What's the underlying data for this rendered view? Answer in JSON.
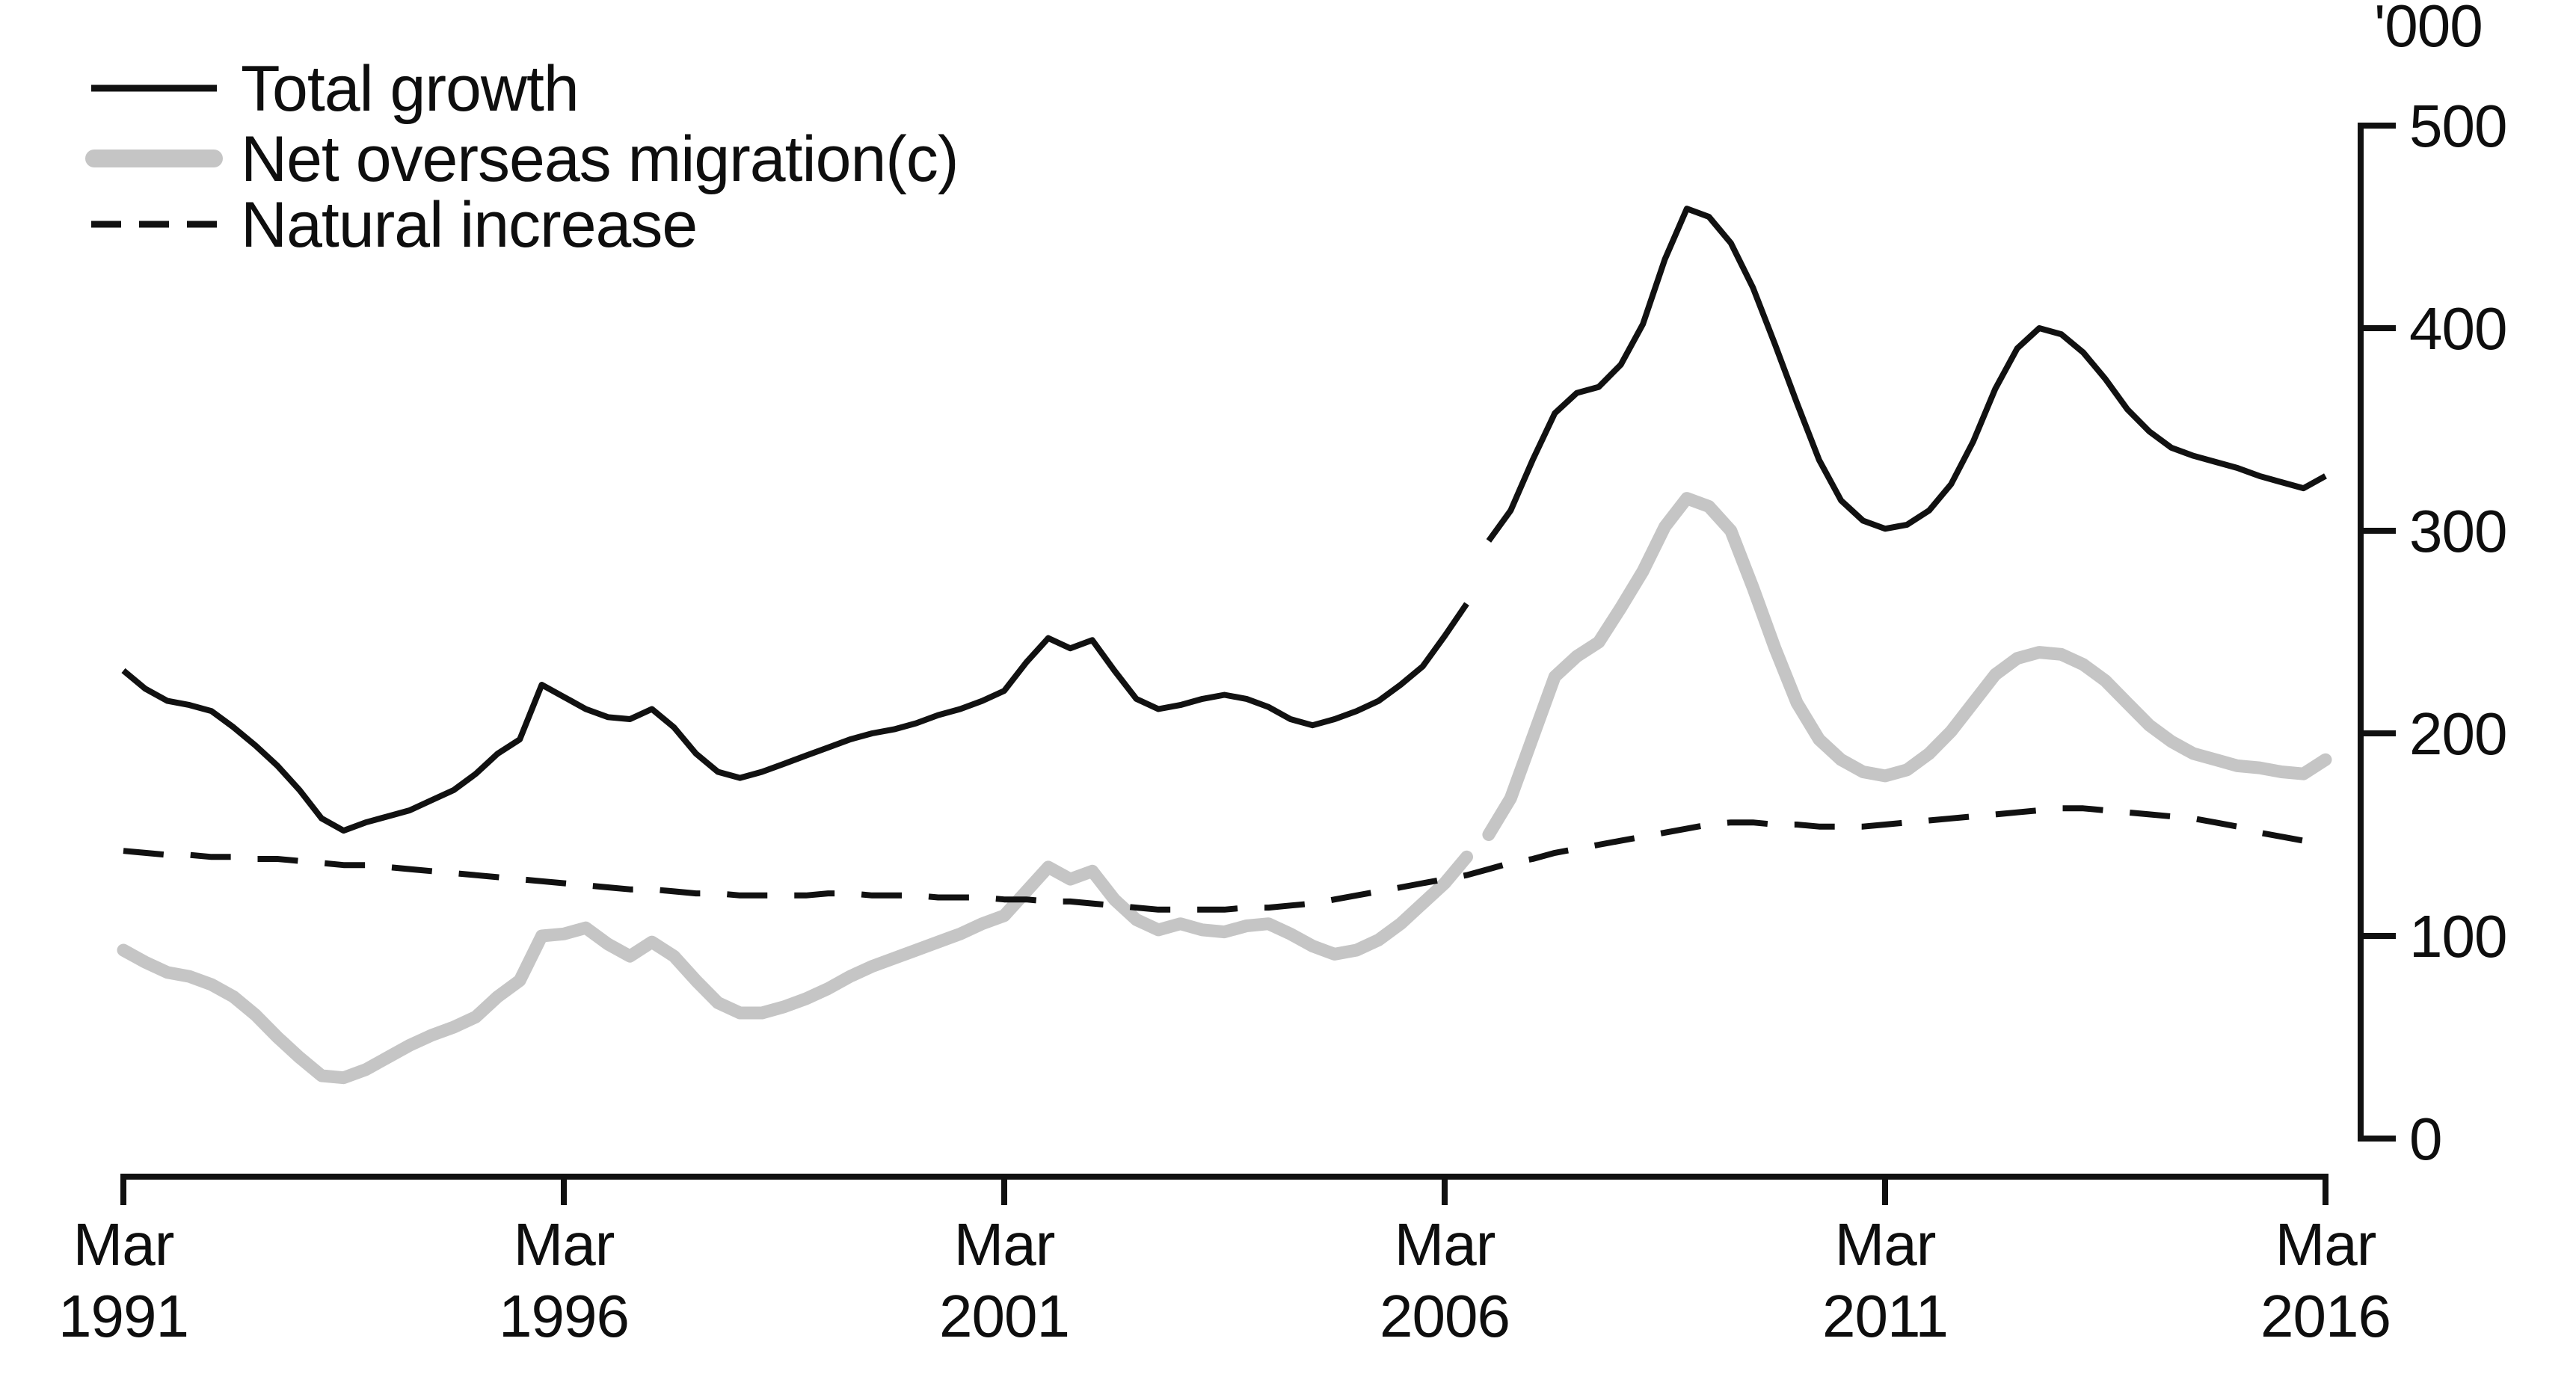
{
  "page": {
    "background": "#ffffff"
  },
  "chart_data": {
    "type": "line",
    "title": "",
    "unit_label": "'000",
    "x_axis": {
      "tick_month": "Mar",
      "tick_years": [
        "1991",
        "1996",
        "2001",
        "2006",
        "2011",
        "2016"
      ],
      "range_years": [
        1991.25,
        2016.25
      ],
      "grid": false
    },
    "y_axis": {
      "side": "right",
      "unit_label": "'000",
      "ticks": [
        0,
        100,
        200,
        300,
        400,
        500
      ],
      "range": [
        0,
        500
      ],
      "grid": false
    },
    "legend_position": "top-left",
    "series": [
      {
        "name": "Total growth",
        "color": "#111111",
        "line_width": 8,
        "dash": null,
        "break_note": "series break between Jun 2006 and Sep 2006",
        "segments": [
          {
            "start_year": 1991.25,
            "step_years": 0.25,
            "values": [
              231,
              222,
              216,
              214,
              211,
              203,
              194,
              184,
              172,
              158,
              152,
              156,
              159,
              162,
              167,
              172,
              180,
              190,
              197,
              224,
              218,
              212,
              208,
              207,
              212,
              203,
              190,
              181,
              178,
              181,
              185,
              189,
              193,
              197,
              200,
              202,
              205,
              209,
              212,
              216,
              221,
              235,
              247,
              242,
              246,
              231,
              217,
              212,
              214,
              217,
              219,
              217,
              213,
              207,
              204,
              207,
              211,
              216,
              224,
              233,
              248,
              264
            ]
          },
          {
            "start_year": 2006.75,
            "step_years": 0.25,
            "values": [
              295,
              310,
              335,
              358,
              368,
              371,
              382,
              402,
              434,
              459,
              455,
              442,
              420,
              392,
              363,
              335,
              315,
              305,
              301,
              303,
              310,
              323,
              344,
              370,
              390,
              400,
              397,
              388,
              375,
              360,
              349,
              341,
              337,
              334,
              331,
              327,
              324,
              321,
              327
            ]
          }
        ]
      },
      {
        "name": "Net overseas migration(c)",
        "color": "#c5c5c5",
        "line_width": 17,
        "dash": null,
        "break_note": "series break between Jun 2006 and Sep 2006",
        "segments": [
          {
            "start_year": 1991.25,
            "step_years": 0.25,
            "values": [
              93,
              87,
              82,
              80,
              76,
              70,
              61,
              50,
              40,
              31,
              30,
              34,
              40,
              46,
              51,
              55,
              60,
              70,
              78,
              100,
              101,
              104,
              96,
              90,
              97,
              90,
              78,
              67,
              62,
              62,
              65,
              69,
              74,
              80,
              85,
              89,
              93,
              97,
              101,
              106,
              110,
              122,
              134,
              128,
              132,
              118,
              108,
              103,
              106,
              103,
              102,
              105,
              106,
              101,
              95,
              91,
              93,
              98,
              106,
              116,
              126,
              139
            ]
          },
          {
            "start_year": 2006.75,
            "step_years": 0.25,
            "values": [
              150,
              168,
              198,
              228,
              238,
              245,
              262,
              280,
              302,
              316,
              312,
              300,
              272,
              242,
              215,
              197,
              187,
              181,
              179,
              182,
              190,
              201,
              215,
              229,
              237,
              240,
              239,
              234,
              226,
              215,
              204,
              196,
              190,
              187,
              184,
              183,
              181,
              180,
              187
            ]
          }
        ]
      },
      {
        "name": "Natural increase",
        "color": "#111111",
        "line_width": 8,
        "dash": [
          54,
          36
        ],
        "break_note": null,
        "segments": [
          {
            "start_year": 1991.25,
            "step_years": 0.25,
            "values": [
              142,
              141,
              140,
              140,
              139,
              139,
              138,
              138,
              137,
              136,
              135,
              135,
              134,
              133,
              132,
              131,
              130,
              129,
              128,
              127,
              126,
              125,
              124,
              123,
              123,
              122,
              121,
              121,
              120,
              120,
              120,
              120,
              121,
              121,
              120,
              120,
              120,
              119,
              119,
              119,
              118,
              118,
              117,
              117,
              116,
              115,
              114,
              113,
              113,
              113,
              113,
              114,
              114,
              115,
              116,
              118,
              120,
              122,
              124,
              126,
              128,
              130,
              133,
              136,
              138,
              141,
              143,
              145,
              147,
              149,
              151,
              153,
              155,
              156,
              156,
              155,
              155,
              154,
              154,
              154,
              155,
              156,
              157,
              158,
              159,
              160,
              161,
              162,
              163,
              163,
              162,
              161,
              160,
              159,
              158,
              156,
              154,
              151,
              149,
              147,
              146
            ]
          }
        ]
      }
    ]
  }
}
